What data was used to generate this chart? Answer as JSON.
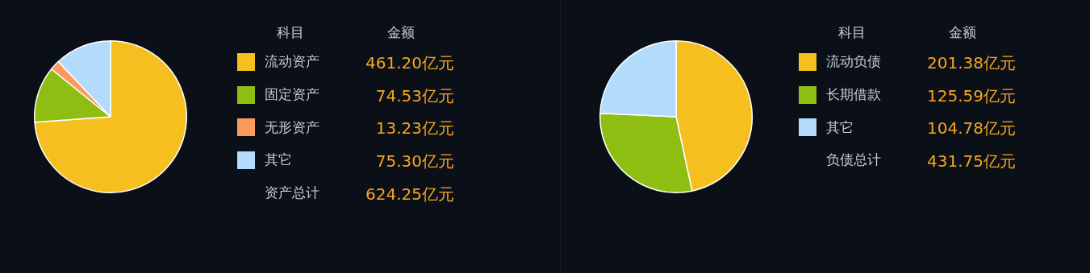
{
  "chart_data": [
    {
      "type": "pie",
      "categories": [
        "流动资产",
        "固定资产",
        "无形资产",
        "其它"
      ],
      "values": [
        461.2,
        74.53,
        13.23,
        75.3
      ],
      "colors": [
        "#f5c01f",
        "#8fbe12",
        "#fb9a5a",
        "#b3dbfb"
      ],
      "value_labels": [
        "461.20亿元",
        "74.53亿元",
        "13.23亿元",
        "75.30亿元"
      ],
      "legend": "right",
      "annotations": [
        "科目",
        "金额",
        "资产总计",
        "624.25亿元"
      ]
    },
    {
      "type": "pie",
      "categories": [
        "流动负债",
        "长期借款",
        "其它"
      ],
      "values": [
        201.38,
        125.59,
        104.78
      ],
      "colors": [
        "#f5c01f",
        "#8fbe12",
        "#b3dbfb"
      ],
      "value_labels": [
        "201.38亿元",
        "125.59亿元",
        "104.78亿元"
      ],
      "legend": "right",
      "annotations": [
        "科目",
        "金额",
        "负债总计",
        "431.75亿元"
      ]
    }
  ]
}
